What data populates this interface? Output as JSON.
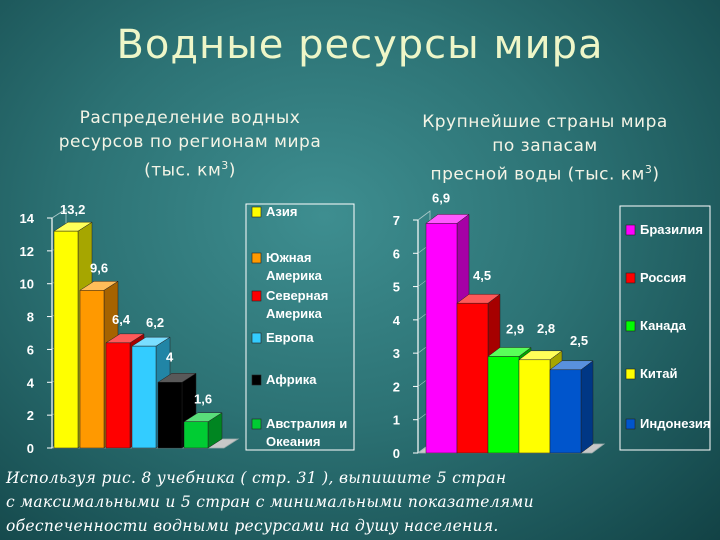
{
  "slide": {
    "title": "Водные  ресурсы  мира",
    "left_subtitle": [
      "Распределение водных",
      "ресурсов по регионам мира"
    ],
    "left_unit_line": "(тыс. км",
    "right_subtitle": [
      "Крупнейшие страны мира",
      "по запасам"
    ],
    "right_unit_line": "пресной воды  (тыс. км",
    "unit_sup": "3",
    "unit_close": ")",
    "task_lines": [
      "Используя рис. 8 учебника ( стр. 31 ), выпишите 5 стран",
      "с  максимальными  и  5  стран  с  минимальными  показателями",
      "обеспеченности водными ресурсами на душу населения."
    ]
  },
  "chart_data": [
    {
      "type": "bar",
      "categories": [
        "Азия",
        "Южная Америка",
        "Северная Америка",
        "Европа",
        "Африка",
        "Австралия и Океания"
      ],
      "legend_labels": [
        [
          "Азия"
        ],
        [
          "Южная",
          "Америка"
        ],
        [
          "Северная",
          "Америка"
        ],
        [
          "Европа"
        ],
        [
          "Африка"
        ],
        [
          "Австралия и",
          "Океания"
        ]
      ],
      "values": [
        13.2,
        9.6,
        6.4,
        6.2,
        4,
        1.6
      ],
      "value_labels": [
        "13,2",
        "9,6",
        "6,4",
        "6,2",
        "4",
        "1,6"
      ],
      "colors": [
        "#ffff00",
        "#ff9900",
        "#ff0000",
        "#33ccff",
        "#000000",
        "#00cc33"
      ],
      "ylim": [
        0,
        14
      ],
      "yticks": [
        "0",
        "2",
        "4",
        "6",
        "8",
        "10",
        "12",
        "14"
      ],
      "legend_position": "right",
      "title": "",
      "xlabel": "",
      "ylabel": ""
    },
    {
      "type": "bar",
      "categories": [
        "Бразилия",
        "Россия",
        "Канада",
        "Китай",
        "Индонезия"
      ],
      "legend_labels": [
        [
          "Бразилия"
        ],
        [
          "Россия"
        ],
        [
          "Канада"
        ],
        [
          "Китай"
        ],
        [
          "Индонезия"
        ]
      ],
      "values": [
        6.9,
        4.5,
        2.9,
        2.8,
        2.5
      ],
      "value_labels": [
        "6,9",
        "4,5",
        "2,9",
        "2,8",
        "2,5"
      ],
      "colors": [
        "#ff00ff",
        "#ff0000",
        "#00ff00",
        "#ffff00",
        "#0055cc"
      ],
      "ylim": [
        0,
        7
      ],
      "yticks": [
        "0",
        "1",
        "2",
        "3",
        "4",
        "5",
        "6",
        "7"
      ],
      "legend_position": "right",
      "title": "",
      "xlabel": "",
      "ylabel": ""
    }
  ]
}
